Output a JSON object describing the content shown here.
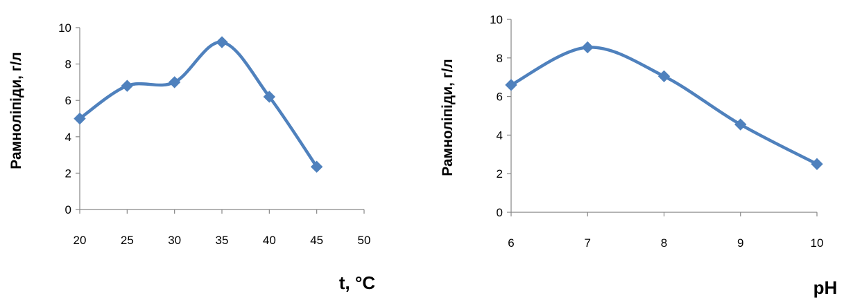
{
  "chart_data": [
    {
      "type": "line",
      "xlabel": "t, °C",
      "ylabel": "Рамноліпіди, г/л",
      "xlim": [
        20,
        50
      ],
      "ylim": [
        0,
        10
      ],
      "xticks": [
        "20",
        "25",
        "30",
        "35",
        "40",
        "45",
        "50"
      ],
      "yticks": [
        "0",
        "2",
        "4",
        "6",
        "8",
        "10"
      ],
      "grid": false,
      "series": [
        {
          "x": [
            20,
            25,
            30,
            35,
            40,
            45
          ],
          "values": [
            5.0,
            6.8,
            7.0,
            9.2,
            6.2,
            2.35
          ]
        }
      ],
      "line_color": "#4f81bd",
      "marker": "diamond",
      "smoothed": true
    },
    {
      "type": "line",
      "xlabel": "pH",
      "ylabel": "Рамноліпіди, г/л",
      "xlim": [
        6,
        10
      ],
      "ylim": [
        0,
        10
      ],
      "xticks": [
        "6",
        "7",
        "8",
        "9",
        "10"
      ],
      "yticks": [
        "0",
        "2",
        "4",
        "6",
        "8",
        "10"
      ],
      "grid": false,
      "series": [
        {
          "x": [
            6,
            7,
            8,
            9,
            10
          ],
          "values": [
            6.6,
            8.55,
            7.05,
            4.55,
            2.5
          ]
        }
      ],
      "line_color": "#4f81bd",
      "marker": "diamond",
      "smoothed": true
    }
  ]
}
